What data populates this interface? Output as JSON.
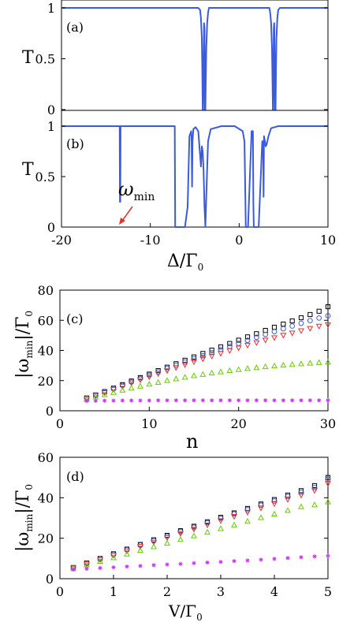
{
  "chart_data": [
    {
      "panel": "(a)",
      "type": "line",
      "ylabel": "T",
      "xlim": [
        -20,
        10
      ],
      "ylim": [
        0,
        1
      ],
      "yticks": [
        "0",
        "0.5",
        "1"
      ],
      "series": [
        {
          "color": "#3b5bdb",
          "x": [
            -20,
            -4.6,
            -4.4,
            -4.3,
            -4.2,
            -4.15,
            -4.1,
            -4.05,
            -4.0,
            -3.95,
            -3.9,
            -3.85,
            -3.8,
            -3.7,
            -3.6,
            -3.5,
            -3.4,
            3.4,
            3.5,
            3.6,
            3.7,
            3.8,
            3.85,
            3.9,
            3.95,
            4.0,
            4.05,
            4.1,
            4.15,
            4.2,
            4.3,
            4.4,
            4.6,
            10
          ],
          "y": [
            1,
            1,
            0.98,
            0.9,
            0.7,
            0.4,
            0,
            0,
            0.5,
            0.85,
            0.8,
            0,
            0,
            0.6,
            0.85,
            0.95,
            1,
            1,
            0.95,
            0.85,
            0.6,
            0,
            0,
            0.8,
            0.85,
            0.5,
            0,
            0,
            0.4,
            0.7,
            0.9,
            0.98,
            1,
            1
          ]
        }
      ]
    },
    {
      "panel": "(b)",
      "type": "line",
      "ylabel": "T",
      "xlabel": "Δ/Γ₀",
      "xlim": [
        -20,
        10
      ],
      "ylim": [
        0,
        1
      ],
      "yticks": [
        "0",
        "0.5",
        "1"
      ],
      "xticks": [
        "-20",
        "-10",
        "0",
        "10"
      ],
      "annotation": "ω_min",
      "series": [
        {
          "color": "#3b5bdb",
          "x": [
            -20,
            -13.45,
            -13.42,
            -13.38,
            -13.35,
            -7.25,
            -7.2,
            -6.9,
            -6.5,
            -6.1,
            -5.8,
            -5.6,
            -5.4,
            -5.35,
            -5.3,
            -5.25,
            -5.15,
            -4.9,
            -4.6,
            -4.3,
            -4.2,
            -4.1,
            -4.0,
            -3.9,
            -3.8,
            -3.7,
            -3.5,
            -3.2,
            -2.0,
            -0.5,
            0.4,
            0.6,
            0.7,
            0.75,
            0.85,
            1.0,
            1.4,
            1.55,
            1.6,
            1.65,
            1.7,
            2.2,
            2.6,
            2.7,
            2.75,
            2.8,
            2.9,
            3.0,
            3.1,
            3.3,
            3.6,
            4.0,
            4.4,
            10
          ],
          "y": [
            1,
            1,
            0.25,
            0.25,
            1,
            1,
            0,
            0,
            0,
            0,
            0.2,
            0.9,
            0.95,
            0.85,
            0.4,
            0.85,
            0.97,
            0.99,
            0.95,
            0.6,
            0.8,
            0.75,
            0.55,
            0.2,
            0,
            0.3,
            0.85,
            0.97,
            1,
            1,
            0.95,
            0.85,
            0.3,
            0,
            0,
            0,
            0.95,
            0.95,
            0.25,
            0,
            0,
            0,
            0.85,
            0.85,
            0.3,
            0.9,
            0.85,
            0.8,
            0.82,
            0.9,
            0.98,
            0.99,
            1,
            1
          ]
        }
      ]
    },
    {
      "panel": "(c)",
      "type": "scatter",
      "ylabel": "|ω_min|/Γ₀",
      "xlabel": "n",
      "xlim": [
        0,
        30
      ],
      "ylim": [
        0,
        80
      ],
      "xticks": [
        "0",
        "10",
        "20",
        "30"
      ],
      "yticks": [
        "0",
        "20",
        "40",
        "60",
        "80"
      ],
      "x": [
        3,
        4,
        5,
        6,
        7,
        8,
        9,
        10,
        11,
        12,
        13,
        14,
        15,
        16,
        17,
        18,
        19,
        20,
        21,
        22,
        23,
        24,
        25,
        26,
        27,
        28,
        29,
        30
      ],
      "series": [
        {
          "marker": "square",
          "color": "#000000",
          "values": [
            8.5,
            10.5,
            12.7,
            15.0,
            17.3,
            19.7,
            22.0,
            24.3,
            26.6,
            28.9,
            31.2,
            33.5,
            35.7,
            38.0,
            40.2,
            42.4,
            44.6,
            46.8,
            49.0,
            51.1,
            53.3,
            55.4,
            57.5,
            59.6,
            61.7,
            63.8,
            66.0,
            69.0
          ]
        },
        {
          "marker": "circle",
          "color": "#3b5bdb",
          "values": [
            8.3,
            10.3,
            12.4,
            14.6,
            16.8,
            19.1,
            21.3,
            23.5,
            25.7,
            27.9,
            30.1,
            32.3,
            34.4,
            36.5,
            38.6,
            40.7,
            42.7,
            44.7,
            46.7,
            48.7,
            50.6,
            52.5,
            54.4,
            56.2,
            58.0,
            59.8,
            61.5,
            63.0
          ]
        },
        {
          "marker": "triangle-down",
          "color": "#e03131",
          "values": [
            8.0,
            10.0,
            12.0,
            14.1,
            16.2,
            18.3,
            20.4,
            22.5,
            24.5,
            26.5,
            28.5,
            30.5,
            32.4,
            34.3,
            36.2,
            38.0,
            39.8,
            41.6,
            43.4,
            45.1,
            46.8,
            48.4,
            50.0,
            51.5,
            53.0,
            54.5,
            56.0,
            57.0
          ]
        },
        {
          "marker": "triangle-up",
          "color": "#66cc00",
          "values": [
            7.6,
            9.2,
            10.7,
            12.2,
            13.7,
            15.1,
            16.4,
            17.7,
            18.9,
            20.1,
            21.2,
            22.3,
            23.3,
            24.2,
            25.1,
            25.9,
            26.7,
            27.4,
            28.1,
            28.7,
            29.3,
            29.8,
            30.3,
            30.8,
            31.2,
            31.6,
            32.0,
            32.3
          ]
        },
        {
          "marker": "asterisk",
          "color": "#cc33ff",
          "values": [
            6.5,
            6.6,
            6.7,
            6.7,
            6.8,
            6.8,
            6.8,
            6.8,
            6.9,
            6.9,
            6.9,
            6.9,
            6.9,
            6.9,
            6.9,
            6.9,
            6.9,
            6.9,
            6.9,
            6.9,
            6.9,
            6.9,
            6.9,
            6.9,
            6.9,
            6.9,
            6.9,
            6.9
          ]
        }
      ]
    },
    {
      "panel": "(d)",
      "type": "scatter",
      "ylabel": "|ω_min|/Γ₀",
      "xlabel": "V/Γ₀",
      "xlim": [
        0,
        5
      ],
      "ylim": [
        0,
        60
      ],
      "xticks": [
        "0",
        "1",
        "2",
        "3",
        "4",
        "5"
      ],
      "yticks": [
        "0",
        "20",
        "40",
        "60"
      ],
      "x": [
        0.25,
        0.5,
        0.75,
        1.0,
        1.25,
        1.5,
        1.75,
        2.0,
        2.25,
        2.5,
        2.75,
        3.0,
        3.25,
        3.5,
        3.75,
        4.0,
        4.25,
        4.5,
        4.75,
        5.0
      ],
      "series": [
        {
          "marker": "square",
          "color": "#000000",
          "values": [
            5.5,
            7.8,
            10.0,
            12.3,
            14.6,
            16.9,
            19.2,
            21.4,
            23.7,
            25.9,
            28.1,
            30.3,
            32.5,
            34.7,
            36.9,
            39.1,
            41.3,
            43.5,
            46.0,
            50.0
          ]
        },
        {
          "marker": "circle",
          "color": "#3b5bdb",
          "values": [
            5.4,
            7.6,
            9.8,
            12.0,
            14.3,
            16.6,
            18.8,
            21.0,
            23.2,
            25.4,
            27.6,
            29.8,
            32.0,
            34.1,
            36.3,
            38.4,
            40.6,
            42.7,
            45.0,
            49.0
          ]
        },
        {
          "marker": "triangle-down",
          "color": "#e03131",
          "values": [
            5.2,
            7.3,
            9.4,
            11.5,
            13.7,
            15.9,
            18.0,
            20.2,
            22.3,
            24.4,
            26.5,
            28.6,
            30.7,
            32.8,
            34.9,
            37.0,
            39.1,
            41.2,
            43.5,
            47.0
          ]
        },
        {
          "marker": "triangle-up",
          "color": "#66cc00",
          "values": [
            5.0,
            6.8,
            8.6,
            10.4,
            12.2,
            14.0,
            15.8,
            17.6,
            19.4,
            21.2,
            23.0,
            24.8,
            26.6,
            28.4,
            30.2,
            32.0,
            33.8,
            35.6,
            36.5,
            38.0
          ]
        },
        {
          "marker": "asterisk",
          "color": "#cc33ff",
          "values": [
            4.5,
            4.9,
            5.3,
            5.6,
            6.0,
            6.3,
            6.7,
            7.0,
            7.3,
            7.7,
            8.0,
            8.3,
            8.7,
            9.0,
            9.4,
            9.8,
            10.2,
            10.6,
            11.0,
            11.3
          ]
        }
      ]
    }
  ]
}
